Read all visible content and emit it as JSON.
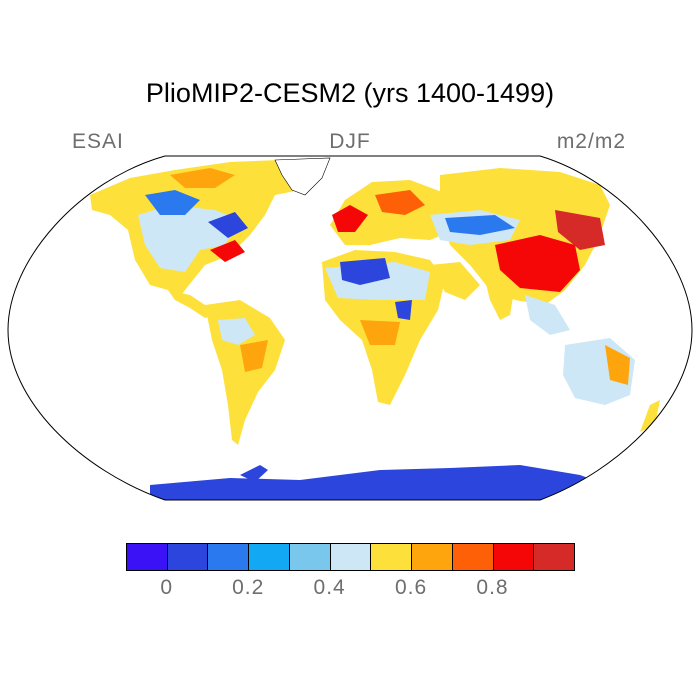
{
  "map": {
    "title": "PlioMIP2-CESM2 (yrs 1400-1499)",
    "variable_label": "ESAI",
    "season_label": "DJF",
    "units_label": "m2/m2",
    "projection": "robinson",
    "ocean_color": "#ffffff",
    "outline_color": "#000000"
  },
  "colorbar": {
    "colors": [
      "#3b12f5",
      "#2c45dc",
      "#2a79ef",
      "#12a8f3",
      "#79c7ed",
      "#cde7f6",
      "#fde03a",
      "#fea50e",
      "#fe6007",
      "#f50707",
      "#d62a28"
    ],
    "tick_labels": [
      "0",
      "0.2",
      "0.4",
      "0.6",
      "0.8"
    ],
    "tick_values": [
      0,
      0.2,
      0.4,
      0.6,
      0.8
    ],
    "levels": [
      0,
      0.1,
      0.2,
      0.3,
      0.4,
      0.5,
      0.6,
      0.7,
      0.8,
      0.9
    ]
  }
}
